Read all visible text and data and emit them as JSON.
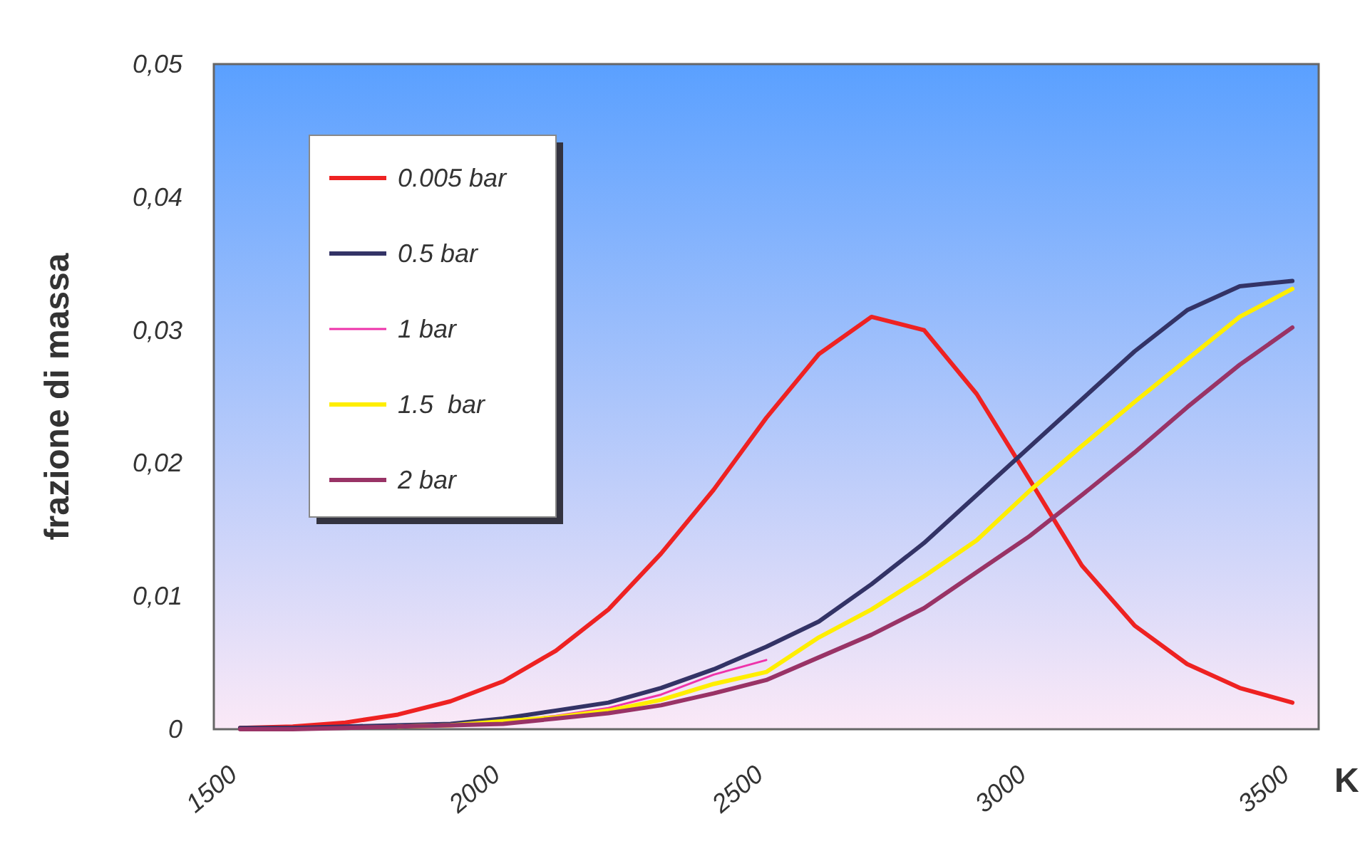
{
  "chart_data": {
    "type": "line",
    "xlabel": "K",
    "ylabel": "frazione di massa",
    "categories": [
      "1500",
      null,
      null,
      null,
      null,
      "2000",
      null,
      null,
      null,
      null,
      "2500",
      null,
      null,
      null,
      null,
      "3000",
      null,
      null,
      null,
      null,
      "3500"
    ],
    "ylim": [
      0,
      0.05
    ],
    "yticks": [
      0,
      {
        "value": 0.01,
        "label": "0,01"
      },
      {
        "value": 0.02,
        "label": "0,02"
      },
      {
        "value": 0.03,
        "label": "0,03"
      },
      {
        "value": 0.04,
        "label": "0,04"
      },
      {
        "value": 0.05,
        "label": "0,05"
      }
    ],
    "grid": false,
    "legend": "top left",
    "marker": "none",
    "line_style": "solid",
    "series": [
      {
        "name": "0.005 bar",
        "color": "#ee2222",
        "values": [
          0.0001,
          0.0002,
          0.0005,
          0.0011,
          0.0021,
          0.0036,
          0.0059,
          0.009,
          0.0132,
          0.018,
          0.0234,
          0.0282,
          0.031,
          0.03,
          0.0252,
          0.0188,
          0.0123,
          0.0078,
          0.0049,
          0.0031,
          0.002
        ]
      },
      {
        "name": "0.5 bar",
        "color": "#333366",
        "values": [
          0.0001,
          0.0001,
          0.0002,
          0.0003,
          0.0004,
          0.0008,
          0.0014,
          0.002,
          0.0031,
          0.0045,
          0.0062,
          0.0081,
          0.0109,
          0.014,
          0.0176,
          0.0212,
          0.0248,
          0.0284,
          0.0315,
          0.0333,
          0.0337
        ]
      },
      {
        "name": "1 bar",
        "color": "#ee33aa",
        "values": [
          null,
          null,
          null,
          null,
          null,
          0.0006,
          0.001,
          0.0016,
          0.0026,
          0.0041,
          0.0052,
          null,
          null,
          null,
          null,
          null,
          null,
          null,
          null,
          null,
          null
        ]
      },
      {
        "name": "1.5  bar",
        "color": "#ffee00",
        "values": [
          null,
          null,
          null,
          0.0002,
          0.0003,
          0.0006,
          0.0009,
          0.0014,
          0.0022,
          0.0034,
          0.0043,
          0.0069,
          0.009,
          0.0115,
          0.0142,
          0.0179,
          0.0213,
          0.0246,
          0.0278,
          0.031,
          0.0331
        ]
      },
      {
        "name": "2 bar",
        "color": "#993366",
        "values": [
          0,
          0,
          0.0001,
          0.0002,
          0.0003,
          0.0004,
          0.0008,
          0.0012,
          0.0018,
          0.0027,
          0.0037,
          0.0054,
          0.0071,
          0.0091,
          0.0118,
          0.0145,
          0.0176,
          0.0208,
          0.0242,
          0.0274,
          0.0302
        ]
      }
    ]
  }
}
